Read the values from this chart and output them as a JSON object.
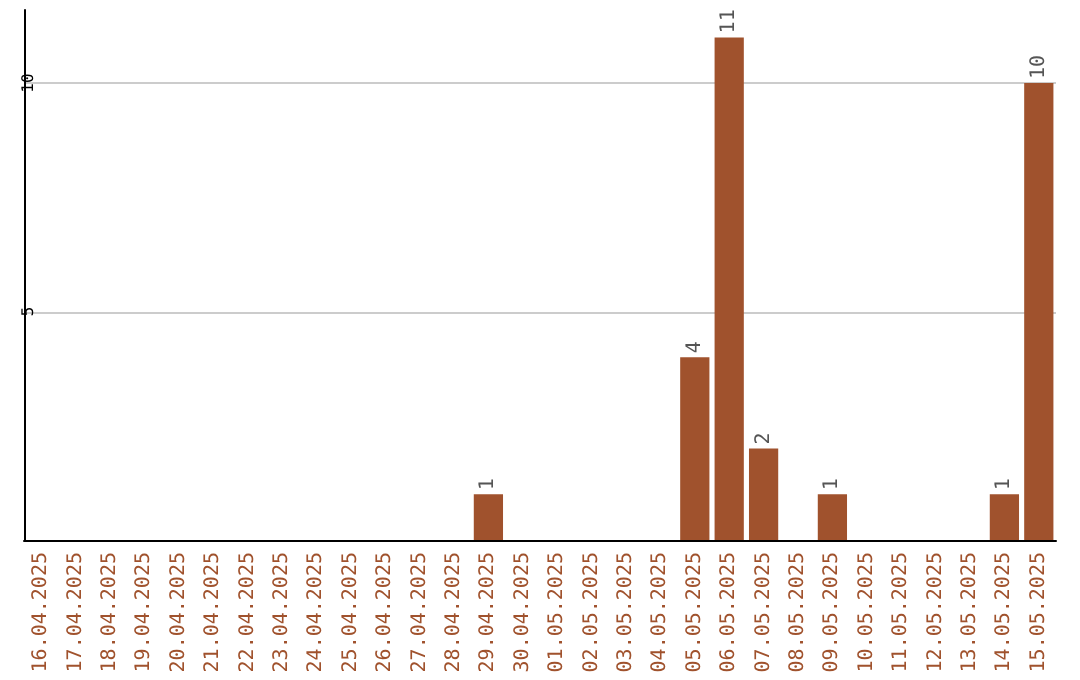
{
  "chart_data": {
    "type": "bar",
    "categories": [
      "16.04.2025",
      "17.04.2025",
      "18.04.2025",
      "19.04.2025",
      "20.04.2025",
      "21.04.2025",
      "22.04.2025",
      "23.04.2025",
      "24.04.2025",
      "25.04.2025",
      "26.04.2025",
      "27.04.2025",
      "28.04.2025",
      "29.04.2025",
      "30.04.2025",
      "01.05.2025",
      "02.05.2025",
      "03.05.2025",
      "04.05.2025",
      "05.05.2025",
      "06.05.2025",
      "07.05.2025",
      "08.05.2025",
      "09.05.2025",
      "10.05.2025",
      "11.05.2025",
      "12.05.2025",
      "13.05.2025",
      "14.05.2025",
      "15.05.2025"
    ],
    "values": [
      0,
      0,
      0,
      0,
      0,
      0,
      0,
      0,
      0,
      0,
      0,
      0,
      0,
      1,
      0,
      0,
      0,
      0,
      0,
      4,
      11,
      2,
      0,
      1,
      0,
      0,
      0,
      0,
      1,
      10
    ],
    "value_labels": [
      null,
      null,
      null,
      null,
      null,
      null,
      null,
      null,
      null,
      null,
      null,
      null,
      null,
      "1",
      null,
      null,
      null,
      null,
      null,
      "4",
      "11",
      "2",
      null,
      "1",
      null,
      null,
      null,
      null,
      "1",
      "10"
    ],
    "color": "#a0522d",
    "ylim": [
      0,
      11.6
    ],
    "yticks": [
      5,
      10
    ],
    "grid": "y"
  }
}
